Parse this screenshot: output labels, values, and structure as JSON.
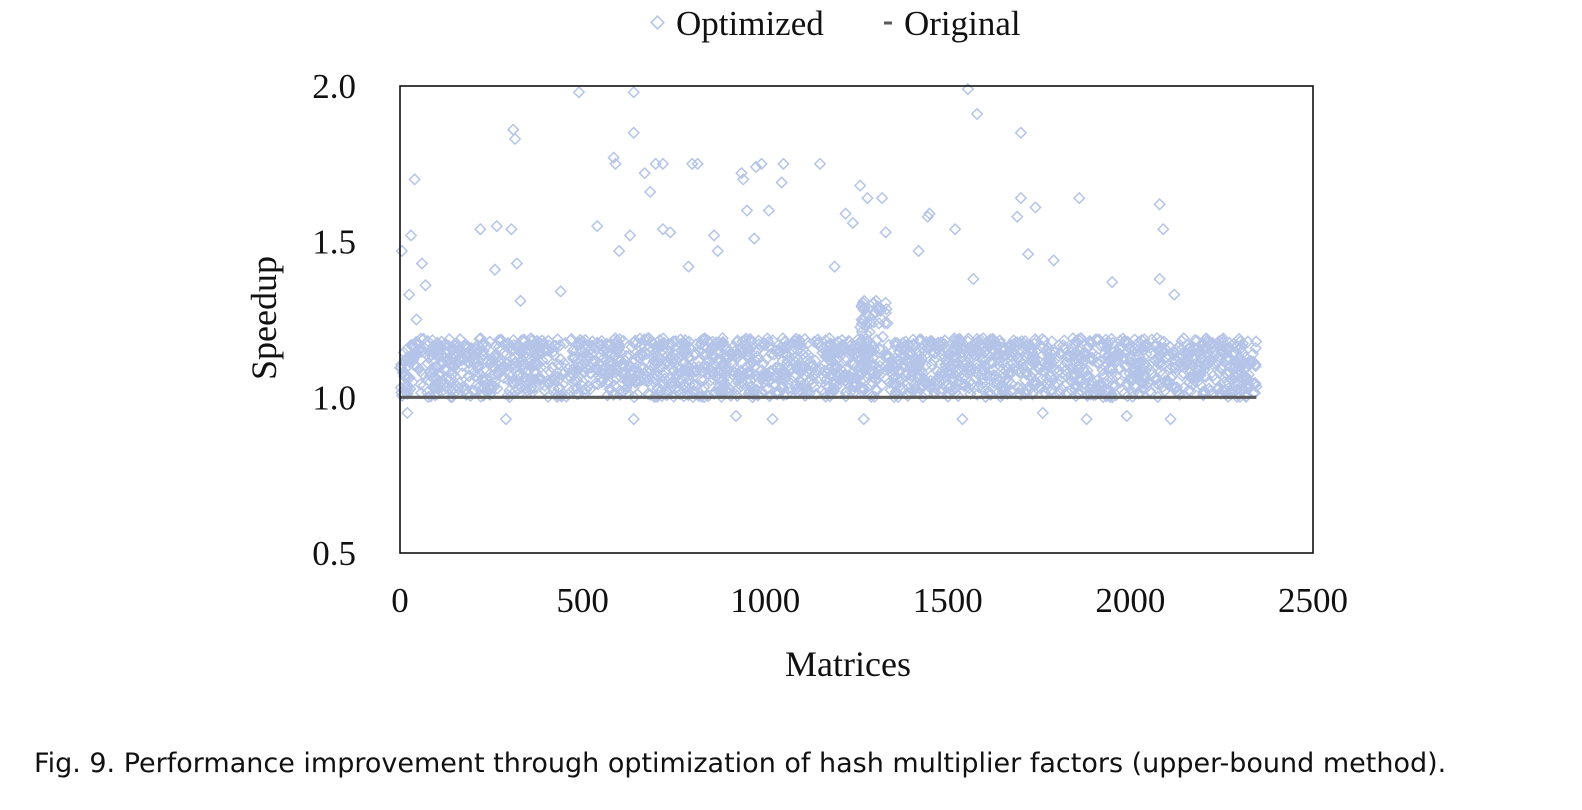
{
  "caption": "Fig. 9.  Performance improvement through optimization of hash multiplier factors (upper-bound method).",
  "chart_data": {
    "type": "scatter",
    "xlabel": "Matrices",
    "ylabel": "Speedup",
    "xlim": [
      0,
      2500
    ],
    "ylim": [
      0.5,
      2.0
    ],
    "xticks": [
      "0",
      "500",
      "1000",
      "1500",
      "2000",
      "2500"
    ],
    "yticks": [
      "0.5",
      "1.0",
      "1.5",
      "2.0"
    ],
    "grid": false,
    "legend_position": "top-center",
    "point_count": 2345,
    "series": [
      {
        "name": "Optimized",
        "marker": "hollow-diamond",
        "color": "#b4c4e8",
        "bulk": [
          {
            "x_range": [
              0,
              1320
            ],
            "y_range": [
              1.0,
              1.19
            ],
            "n": 1320
          },
          {
            "x_range": [
              1330,
              2345
            ],
            "y_range": [
              1.0,
              1.19
            ],
            "n": 1015
          },
          {
            "x_range": [
              1260,
              1340
            ],
            "y_range": [
              1.19,
              1.31
            ],
            "n": 40
          }
        ],
        "points": [
          {
            "x": 5,
            "y": 1.47
          },
          {
            "x": 30,
            "y": 1.52
          },
          {
            "x": 40,
            "y": 1.7
          },
          {
            "x": 60,
            "y": 1.43
          },
          {
            "x": 25,
            "y": 1.33
          },
          {
            "x": 45,
            "y": 1.25
          },
          {
            "x": 70,
            "y": 1.36
          },
          {
            "x": 20,
            "y": 0.95
          },
          {
            "x": 220,
            "y": 1.54
          },
          {
            "x": 265,
            "y": 1.55
          },
          {
            "x": 260,
            "y": 1.41
          },
          {
            "x": 310,
            "y": 1.86
          },
          {
            "x": 315,
            "y": 1.83
          },
          {
            "x": 305,
            "y": 1.54
          },
          {
            "x": 320,
            "y": 1.43
          },
          {
            "x": 330,
            "y": 1.31
          },
          {
            "x": 440,
            "y": 1.34
          },
          {
            "x": 490,
            "y": 1.98
          },
          {
            "x": 640,
            "y": 1.98
          },
          {
            "x": 640,
            "y": 1.85
          },
          {
            "x": 585,
            "y": 1.77
          },
          {
            "x": 590,
            "y": 1.75
          },
          {
            "x": 540,
            "y": 1.55
          },
          {
            "x": 600,
            "y": 1.47
          },
          {
            "x": 630,
            "y": 1.52
          },
          {
            "x": 670,
            "y": 1.72
          },
          {
            "x": 685,
            "y": 1.66
          },
          {
            "x": 700,
            "y": 1.75
          },
          {
            "x": 720,
            "y": 1.75
          },
          {
            "x": 720,
            "y": 1.54
          },
          {
            "x": 740,
            "y": 1.53
          },
          {
            "x": 800,
            "y": 1.75
          },
          {
            "x": 815,
            "y": 1.75
          },
          {
            "x": 790,
            "y": 1.42
          },
          {
            "x": 860,
            "y": 1.52
          },
          {
            "x": 870,
            "y": 1.47
          },
          {
            "x": 935,
            "y": 1.72
          },
          {
            "x": 940,
            "y": 1.7
          },
          {
            "x": 950,
            "y": 1.6
          },
          {
            "x": 975,
            "y": 1.74
          },
          {
            "x": 990,
            "y": 1.75
          },
          {
            "x": 970,
            "y": 1.51
          },
          {
            "x": 1010,
            "y": 1.6
          },
          {
            "x": 1050,
            "y": 1.75
          },
          {
            "x": 1045,
            "y": 1.69
          },
          {
            "x": 1150,
            "y": 1.75
          },
          {
            "x": 1190,
            "y": 1.42
          },
          {
            "x": 1220,
            "y": 1.59
          },
          {
            "x": 1260,
            "y": 1.68
          },
          {
            "x": 1280,
            "y": 1.64
          },
          {
            "x": 1320,
            "y": 1.64
          },
          {
            "x": 1240,
            "y": 1.56
          },
          {
            "x": 1330,
            "y": 1.53
          },
          {
            "x": 1420,
            "y": 1.47
          },
          {
            "x": 1450,
            "y": 1.59
          },
          {
            "x": 1445,
            "y": 1.58
          },
          {
            "x": 1520,
            "y": 1.54
          },
          {
            "x": 1555,
            "y": 1.99
          },
          {
            "x": 1580,
            "y": 1.91
          },
          {
            "x": 1570,
            "y": 1.38
          },
          {
            "x": 1700,
            "y": 1.85
          },
          {
            "x": 1700,
            "y": 1.64
          },
          {
            "x": 1740,
            "y": 1.61
          },
          {
            "x": 1690,
            "y": 1.58
          },
          {
            "x": 1720,
            "y": 1.46
          },
          {
            "x": 1790,
            "y": 1.44
          },
          {
            "x": 1860,
            "y": 1.64
          },
          {
            "x": 1950,
            "y": 1.37
          },
          {
            "x": 2080,
            "y": 1.62
          },
          {
            "x": 2090,
            "y": 1.54
          },
          {
            "x": 2080,
            "y": 1.38
          },
          {
            "x": 2120,
            "y": 1.33
          },
          {
            "x": 1760,
            "y": 0.95
          },
          {
            "x": 1990,
            "y": 0.94
          },
          {
            "x": 1270,
            "y": 0.93
          },
          {
            "x": 920,
            "y": 0.94
          },
          {
            "x": 1540,
            "y": 0.93
          },
          {
            "x": 1880,
            "y": 0.93
          },
          {
            "x": 2110,
            "y": 0.93
          },
          {
            "x": 1020,
            "y": 0.93
          },
          {
            "x": 640,
            "y": 0.93
          },
          {
            "x": 290,
            "y": 0.93
          }
        ]
      },
      {
        "name": "Original",
        "marker": "line",
        "color": "#595959",
        "x": [
          0,
          2345
        ],
        "y": [
          1.0,
          1.0
        ]
      }
    ]
  }
}
